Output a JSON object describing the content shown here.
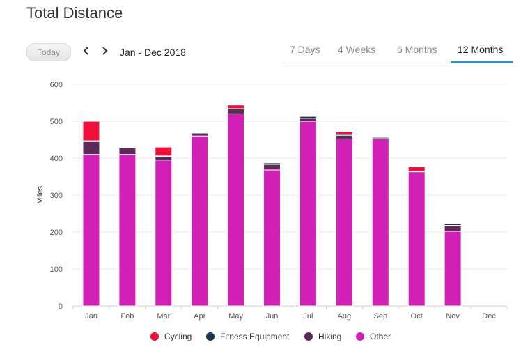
{
  "header": {
    "title": "Total Distance"
  },
  "controls": {
    "today_label": "Today",
    "range_label": "Jan - Dec 2018",
    "prev_icon": "chevron-left-icon",
    "next_icon": "chevron-right-icon"
  },
  "tabs": [
    {
      "label": "7 Days",
      "active": false
    },
    {
      "label": "4 Weeks",
      "active": false
    },
    {
      "label": "6 Months",
      "active": false
    },
    {
      "label": "12 Months",
      "active": true
    }
  ],
  "colors": {
    "accent": "#1a9ad9",
    "grid": "#e8e8e8",
    "axis_text": "#555555"
  },
  "chart_data": {
    "type": "bar",
    "stacked": true,
    "ylabel": "Miles",
    "ylim": [
      0,
      600
    ],
    "yticks": [
      0,
      100,
      200,
      300,
      400,
      500,
      600
    ],
    "categories": [
      "Jan",
      "Feb",
      "Mar",
      "Apr",
      "May",
      "Jun",
      "Jul",
      "Aug",
      "Sep",
      "Oct",
      "Nov",
      "Dec"
    ],
    "grid": true,
    "legend_position": "bottom",
    "series": [
      {
        "name": "Other",
        "color": "#d020b5",
        "values": [
          410,
          410,
          395,
          460,
          520,
          368,
          500,
          452,
          452,
          363,
          202,
          0
        ]
      },
      {
        "name": "Hiking",
        "color": "#5c2a58",
        "values": [
          35,
          18,
          10,
          8,
          13,
          15,
          8,
          10,
          3,
          0,
          16,
          0
        ]
      },
      {
        "name": "Fitness Equipment",
        "color": "#1a3550",
        "values": [
          2,
          1,
          1,
          1,
          1,
          4,
          5,
          3,
          3,
          1,
          4,
          0
        ]
      },
      {
        "name": "Cycling",
        "color": "#f0103c",
        "values": [
          53,
          0,
          24,
          0,
          10,
          0,
          0,
          7,
          0,
          13,
          0,
          0
        ]
      }
    ]
  }
}
